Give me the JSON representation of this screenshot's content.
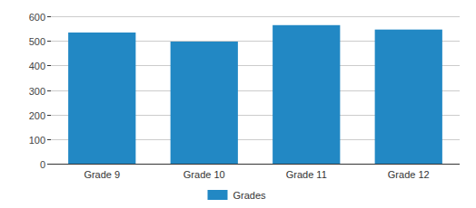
{
  "chart_data": {
    "type": "bar",
    "categories": [
      "Grade 9",
      "Grade 10",
      "Grade 11",
      "Grade 12"
    ],
    "series": [
      {
        "name": "Grades",
        "color": "#2288c4",
        "values": [
          534,
          497,
          564,
          546
        ]
      }
    ],
    "ylim": [
      0,
      600
    ],
    "yticks": [
      0,
      100,
      200,
      300,
      400,
      500,
      600
    ],
    "grid": true,
    "legend": "bottom"
  }
}
